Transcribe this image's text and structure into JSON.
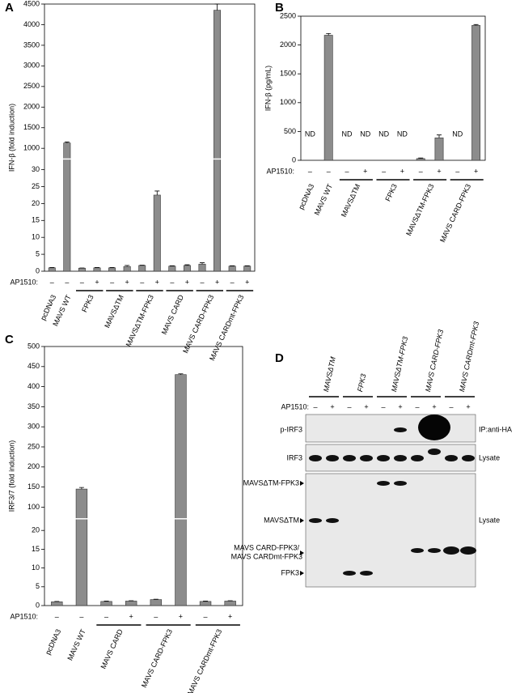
{
  "chart_data": [
    {
      "type": "bar",
      "panel": "A",
      "ylabel": "IFN-β (fold induction)",
      "color": "#8c8c8c",
      "ylim": [
        0,
        4500
      ],
      "axis_break": [
        30,
        1000
      ],
      "yticks": [
        0,
        5,
        10,
        15,
        20,
        25,
        30,
        1000,
        1500,
        2000,
        2500,
        3000,
        3500,
        4000,
        4500
      ],
      "treatment_label": "AP1510:",
      "groups": [
        {
          "label": "pcDNA3",
          "treatment": [
            "–"
          ],
          "values": [
            1
          ],
          "errors": [
            0.1
          ]
        },
        {
          "label": "MAVS WT",
          "treatment": [
            "–"
          ],
          "values": [
            1130
          ],
          "errors": [
            25
          ]
        },
        {
          "label": "FPK3",
          "treatment": [
            "–",
            "+"
          ],
          "values": [
            0.9,
            1.0
          ],
          "errors": [
            0.05,
            0.1
          ]
        },
        {
          "label": "MAVSΔTM",
          "treatment": [
            "–",
            "+"
          ],
          "values": [
            1.0,
            1.4
          ],
          "errors": [
            0.1,
            0.3
          ]
        },
        {
          "label": "MAVSΔTM-FPK3",
          "treatment": [
            "–",
            "+"
          ],
          "values": [
            1.7,
            22.5
          ],
          "errors": [
            0.1,
            1.2
          ]
        },
        {
          "label": "MAVS CARD",
          "treatment": [
            "–",
            "+"
          ],
          "values": [
            1.5,
            1.7
          ],
          "errors": [
            0.1,
            0.2
          ]
        },
        {
          "label": "MAVS CARD-FPK3",
          "treatment": [
            "–",
            "+"
          ],
          "values": [
            2.1,
            4350
          ],
          "errors": [
            0.4,
            150
          ]
        },
        {
          "label": "MAVS CARDmt-FPK3",
          "treatment": [
            "–",
            "+"
          ],
          "values": [
            1.5,
            1.5
          ],
          "errors": [
            0.1,
            0.1
          ]
        }
      ]
    },
    {
      "type": "bar",
      "panel": "B",
      "ylabel": "IFN-β (pg/mL)",
      "color": "#8c8c8c",
      "ylim": [
        0,
        2500
      ],
      "yticks": [
        0,
        500,
        1000,
        1500,
        2000,
        2500
      ],
      "treatment_label": "AP1510:",
      "groups": [
        {
          "label": "pcDNA3",
          "treatment": [
            "–"
          ],
          "values": [
            null
          ],
          "value_labels": [
            "ND"
          ],
          "errors": [
            null
          ]
        },
        {
          "label": "MAVS WT",
          "treatment": [
            "–"
          ],
          "values": [
            2170
          ],
          "errors": [
            30
          ]
        },
        {
          "label": "MAVSΔTM",
          "treatment": [
            "–",
            "+"
          ],
          "values": [
            null,
            null
          ],
          "value_labels": [
            "ND",
            "ND"
          ],
          "errors": [
            null,
            null
          ]
        },
        {
          "label": "FPK3",
          "treatment": [
            "–",
            "+"
          ],
          "values": [
            null,
            null
          ],
          "value_labels": [
            "ND",
            "ND"
          ],
          "errors": [
            null,
            null
          ]
        },
        {
          "label": "MAVSΔTM-FPK3",
          "treatment": [
            "–",
            "+"
          ],
          "values": [
            30,
            390
          ],
          "errors": [
            10,
            50
          ]
        },
        {
          "label": "MAVS CARD-FPK3",
          "treatment": [
            "–",
            "+"
          ],
          "values": [
            null,
            2340
          ],
          "value_labels": [
            "ND",
            null
          ],
          "errors": [
            null,
            15
          ]
        }
      ]
    },
    {
      "type": "bar",
      "panel": "C",
      "ylabel": "IRF3/7 (fold induction)",
      "color": "#8c8c8c",
      "ylim": [
        0,
        500
      ],
      "axis_break": [
        20,
        100
      ],
      "yticks": [
        0,
        5,
        10,
        15,
        20,
        100,
        150,
        200,
        250,
        300,
        350,
        400,
        450,
        500
      ],
      "treatment_label": "AP1510:",
      "groups": [
        {
          "label": "pcDNA3",
          "treatment": [
            "–"
          ],
          "values": [
            1
          ],
          "errors": [
            0.1
          ]
        },
        {
          "label": "MAVS WT",
          "treatment": [
            "–"
          ],
          "values": [
            145
          ],
          "errors": [
            4
          ]
        },
        {
          "label": "MAVS CARD",
          "treatment": [
            "–",
            "+"
          ],
          "values": [
            1.1,
            1.2
          ],
          "errors": [
            0.1,
            0.1
          ]
        },
        {
          "label": "MAVS CARD-FPK3",
          "treatment": [
            "–",
            "+"
          ],
          "values": [
            1.6,
            430
          ],
          "errors": [
            0.1,
            2
          ]
        },
        {
          "label": "MAVS CARDmt-FPK3",
          "treatment": [
            "–",
            "+"
          ],
          "values": [
            1.1,
            1.2
          ],
          "errors": [
            0.1,
            0.1
          ]
        }
      ]
    }
  ],
  "blot": {
    "panel": "D",
    "treatment_label": "AP1510:",
    "lanes": [
      {
        "label": "MAVSΔTM",
        "treatment": [
          "–",
          "+"
        ]
      },
      {
        "label": "FPK3",
        "treatment": [
          "–",
          "+"
        ]
      },
      {
        "label": "MAVSΔTM-FPK3",
        "treatment": [
          "–",
          "+"
        ]
      },
      {
        "label": "MAVS CARD-FPK3",
        "treatment": [
          "–",
          "+"
        ]
      },
      {
        "label": "MAVS CARDmt-FPK3",
        "treatment": [
          "–",
          "+"
        ]
      }
    ],
    "row_labels": [
      "p-IRF3",
      "IRF3",
      "MAVSΔTM-FPK3",
      "MAVSΔTM",
      "MAVS CARD-FPK3/",
      "MAVS CARDmt-FPK3",
      "FPK3"
    ],
    "right_labels": [
      "IP:anti-HA",
      "Lysate",
      "Lysate"
    ]
  }
}
